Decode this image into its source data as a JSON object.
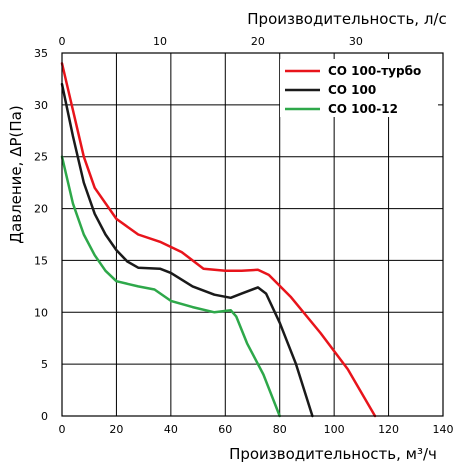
{
  "chart_data": {
    "type": "line",
    "title": "",
    "xlabel": "Производительность, м³/ч",
    "ylabel": "Давление, ΔP(Па)",
    "x2label": "Производительность, л/с",
    "xlim": [
      0,
      140
    ],
    "ylim": [
      0,
      35
    ],
    "x2lim": [
      0,
      38.89
    ],
    "xticks": [
      "0",
      "20",
      "40",
      "60",
      "80",
      "100",
      "120",
      "140"
    ],
    "yticks": [
      "0",
      "5",
      "10",
      "15",
      "20",
      "25",
      "30",
      "35"
    ],
    "x2ticks": [
      "0",
      "10",
      "20",
      "30"
    ],
    "grid": true,
    "legend_position": "top-right",
    "series": [
      {
        "name": "СО 100-турбо",
        "color": "#e8141b",
        "points": [
          [
            0,
            34
          ],
          [
            4,
            29.5
          ],
          [
            8,
            25
          ],
          [
            12,
            22
          ],
          [
            20,
            19
          ],
          [
            28,
            17.5
          ],
          [
            36,
            16.8
          ],
          [
            44,
            15.8
          ],
          [
            52,
            14.2
          ],
          [
            60,
            14.0
          ],
          [
            66,
            14.0
          ],
          [
            72,
            14.1
          ],
          [
            76,
            13.6
          ],
          [
            84,
            11.5
          ],
          [
            95,
            8.0
          ],
          [
            105,
            4.5
          ],
          [
            115,
            0
          ]
        ]
      },
      {
        "name": "СО 100",
        "color": "#1a1a1a",
        "points": [
          [
            0,
            32
          ],
          [
            4,
            27
          ],
          [
            8,
            22.5
          ],
          [
            12,
            19.5
          ],
          [
            16,
            17.5
          ],
          [
            20,
            16
          ],
          [
            24,
            14.9
          ],
          [
            28,
            14.3
          ],
          [
            36,
            14.2
          ],
          [
            40,
            13.8
          ],
          [
            48,
            12.5
          ],
          [
            56,
            11.7
          ],
          [
            62,
            11.4
          ],
          [
            66,
            11.8
          ],
          [
            72,
            12.4
          ],
          [
            75,
            11.8
          ],
          [
            80,
            9.0
          ],
          [
            86,
            5.0
          ],
          [
            92,
            0
          ]
        ]
      },
      {
        "name": "СО 100-12",
        "color": "#2ea84a",
        "points": [
          [
            0,
            25
          ],
          [
            4,
            20.5
          ],
          [
            8,
            17.5
          ],
          [
            12,
            15.5
          ],
          [
            16,
            14.0
          ],
          [
            20,
            13.0
          ],
          [
            28,
            12.5
          ],
          [
            34,
            12.2
          ],
          [
            40,
            11.1
          ],
          [
            48,
            10.5
          ],
          [
            56,
            10.0
          ],
          [
            62,
            10.2
          ],
          [
            64,
            9.6
          ],
          [
            68,
            7.0
          ],
          [
            74,
            4.0
          ],
          [
            80,
            0
          ]
        ]
      }
    ]
  }
}
